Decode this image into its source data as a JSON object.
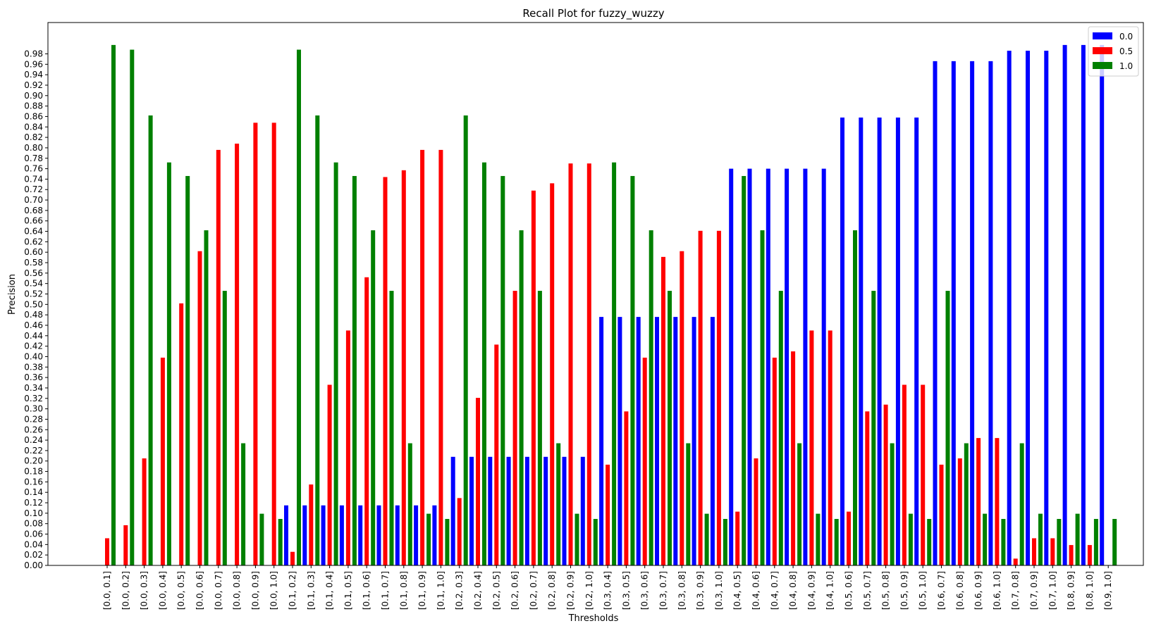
{
  "chart_data": {
    "type": "bar",
    "title": "Recall Plot for fuzzy_wuzzy",
    "xlabel": "Thresholds",
    "ylabel": "Precision",
    "ylim": [
      0,
      1.04
    ],
    "yticks": [
      0.0,
      0.02,
      0.04,
      0.06,
      0.08,
      0.1,
      0.12,
      0.14,
      0.16,
      0.18,
      0.2,
      0.22,
      0.24,
      0.26,
      0.28,
      0.3,
      0.32,
      0.34,
      0.36,
      0.38,
      0.4,
      0.42,
      0.44,
      0.46,
      0.48,
      0.5,
      0.52,
      0.54,
      0.56,
      0.58,
      0.6,
      0.62,
      0.64,
      0.66,
      0.68,
      0.7,
      0.72,
      0.74,
      0.76,
      0.78,
      0.8,
      0.82,
      0.84,
      0.86,
      0.88,
      0.9,
      0.92,
      0.94,
      0.96,
      0.98
    ],
    "legend_position": "top-right",
    "categories": [
      "[0.0, 0.1]",
      "[0.0, 0.2]",
      "[0.0, 0.3]",
      "[0.0, 0.4]",
      "[0.0, 0.5]",
      "[0.0, 0.6]",
      "[0.0, 0.7]",
      "[0.0, 0.8]",
      "[0.0, 0.9]",
      "[0.0, 1.0]",
      "[0.1, 0.2]",
      "[0.1, 0.3]",
      "[0.1, 0.4]",
      "[0.1, 0.5]",
      "[0.1, 0.6]",
      "[0.1, 0.7]",
      "[0.1, 0.8]",
      "[0.1, 0.9]",
      "[0.1, 1.0]",
      "[0.2, 0.3]",
      "[0.2, 0.4]",
      "[0.2, 0.5]",
      "[0.2, 0.6]",
      "[0.2, 0.7]",
      "[0.2, 0.8]",
      "[0.2, 0.9]",
      "[0.2, 1.0]",
      "[0.3, 0.4]",
      "[0.3, 0.5]",
      "[0.3, 0.6]",
      "[0.3, 0.7]",
      "[0.3, 0.8]",
      "[0.3, 0.9]",
      "[0.3, 1.0]",
      "[0.4, 0.5]",
      "[0.4, 0.6]",
      "[0.4, 0.7]",
      "[0.4, 0.8]",
      "[0.4, 0.9]",
      "[0.4, 1.0]",
      "[0.5, 0.6]",
      "[0.5, 0.7]",
      "[0.5, 0.8]",
      "[0.5, 0.9]",
      "[0.5, 1.0]",
      "[0.6, 0.7]",
      "[0.6, 0.8]",
      "[0.6, 0.9]",
      "[0.6, 1.0]",
      "[0.7, 0.8]",
      "[0.7, 0.9]",
      "[0.7, 1.0]",
      "[0.8, 0.9]",
      "[0.8, 1.0]",
      "[0.9, 1.0]"
    ],
    "series": [
      {
        "name": "0.0",
        "color": "#0000ff",
        "values": [
          0,
          0,
          0,
          0,
          0,
          0,
          0,
          0,
          0,
          0,
          0.115,
          0.115,
          0.115,
          0.115,
          0.115,
          0.115,
          0.115,
          0.115,
          0.115,
          0.208,
          0.208,
          0.208,
          0.208,
          0.208,
          0.208,
          0.208,
          0.208,
          0.476,
          0.476,
          0.476,
          0.476,
          0.476,
          0.476,
          0.476,
          0.76,
          0.76,
          0.76,
          0.76,
          0.76,
          0.76,
          0.858,
          0.858,
          0.858,
          0.858,
          0.858,
          0.966,
          0.966,
          0.966,
          0.966,
          0.986,
          0.986,
          0.986,
          0.997,
          0.997,
          0.997
        ]
      },
      {
        "name": "0.5",
        "color": "#ff0000",
        "values": [
          0.052,
          0.077,
          0.205,
          0.398,
          0.502,
          0.602,
          0.796,
          0.808,
          0.848,
          0.848,
          0.026,
          0.155,
          0.346,
          0.45,
          0.552,
          0.744,
          0.757,
          0.796,
          0.796,
          0.129,
          0.321,
          0.423,
          0.526,
          0.718,
          0.732,
          0.77,
          0.77,
          0.193,
          0.295,
          0.398,
          0.591,
          0.602,
          0.641,
          0.641,
          0.103,
          0.205,
          0.398,
          0.41,
          0.45,
          0.45,
          0.103,
          0.295,
          0.308,
          0.346,
          0.346,
          0.193,
          0.205,
          0.244,
          0.244,
          0.013,
          0.052,
          0.052,
          0.039,
          0.039,
          0
        ]
      },
      {
        "name": "1.0",
        "color": "#008000",
        "values": [
          0.997,
          0.988,
          0.862,
          0.772,
          0.746,
          0.642,
          0.526,
          0.234,
          0.099,
          0.089,
          0.988,
          0.862,
          0.772,
          0.746,
          0.642,
          0.526,
          0.234,
          0.099,
          0.089,
          0.862,
          0.772,
          0.746,
          0.642,
          0.526,
          0.234,
          0.099,
          0.089,
          0.772,
          0.746,
          0.642,
          0.526,
          0.234,
          0.099,
          0.089,
          0.746,
          0.642,
          0.526,
          0.234,
          0.099,
          0.089,
          0.642,
          0.526,
          0.234,
          0.099,
          0.089,
          0.526,
          0.234,
          0.099,
          0.089,
          0.234,
          0.099,
          0.089,
          0.099,
          0.089,
          0.089
        ]
      }
    ]
  }
}
